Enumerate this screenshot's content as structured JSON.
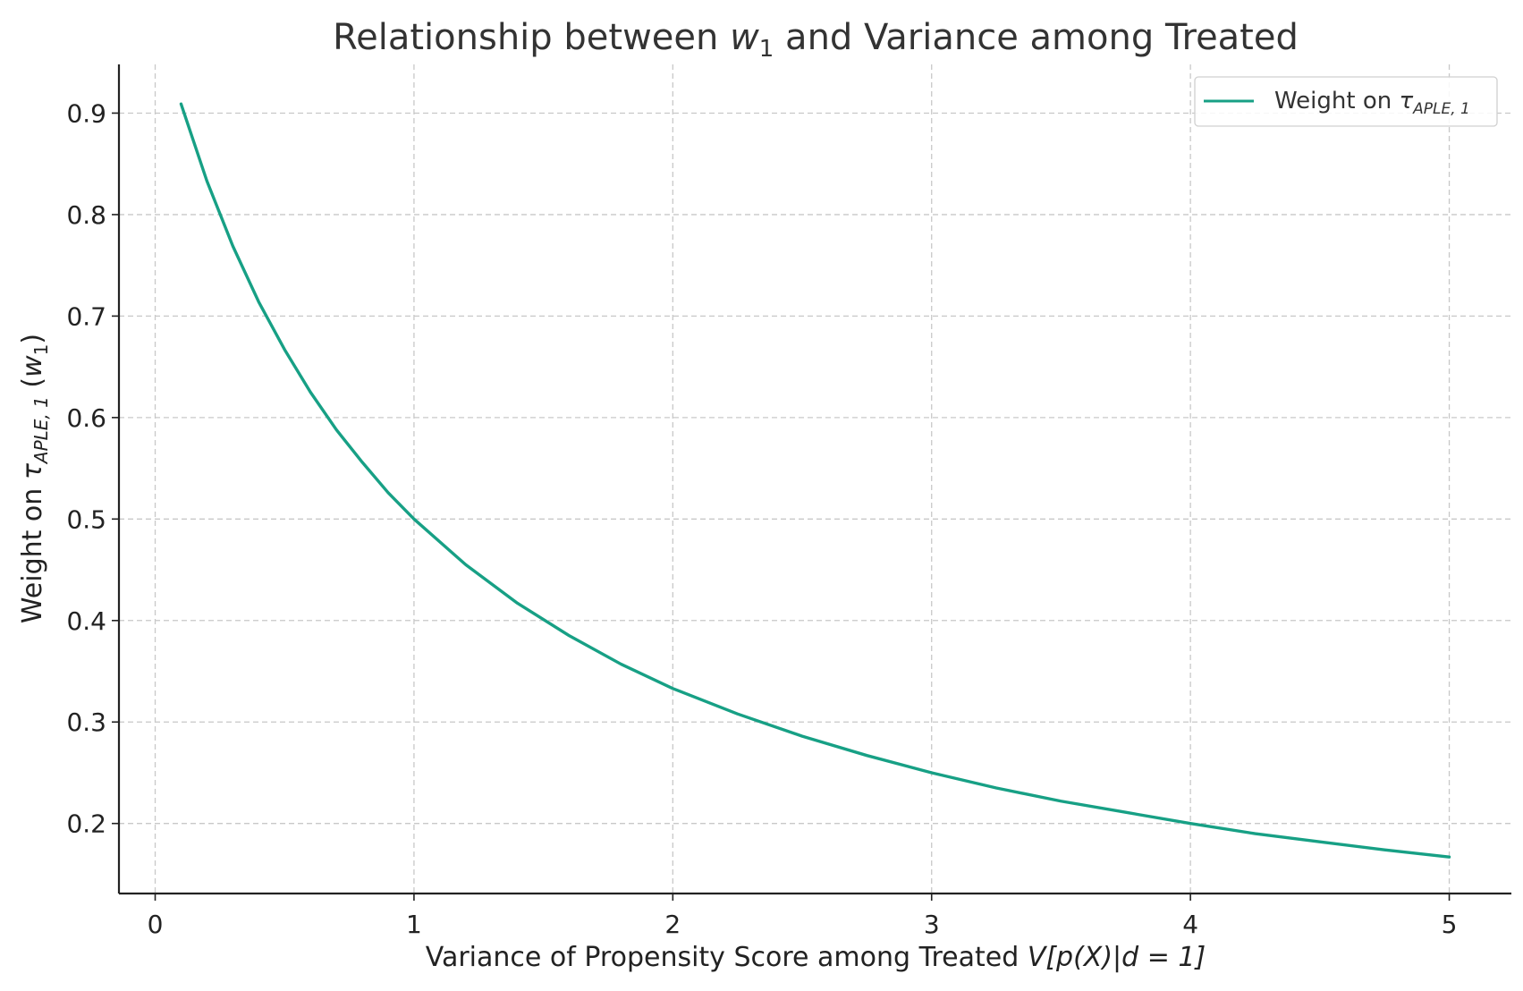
{
  "chart_data": {
    "type": "line",
    "title": {
      "prefix": "Relationship between ",
      "symbol": "w",
      "symbol_sub": "1",
      "suffix": " and Variance among Treated"
    },
    "xlabel": {
      "prefix": "Variance of Propensity Score among Treated ",
      "math": "V[p(X)|d = 1]"
    },
    "ylabel": {
      "prefix": "Weight on ",
      "symbol": "τ",
      "symbol_sub": "APLE, 1",
      "paren_symbol": "w",
      "paren_sub": "1"
    },
    "xlim": [
      -0.14,
      5.24
    ],
    "ylim": [
      0.131,
      0.948
    ],
    "xticks": [
      0,
      1,
      2,
      3,
      4,
      5
    ],
    "xtick_labels": [
      "0",
      "1",
      "2",
      "3",
      "4",
      "5"
    ],
    "yticks": [
      0.2,
      0.3,
      0.4,
      0.5,
      0.6,
      0.7,
      0.8,
      0.9
    ],
    "ytick_labels": [
      "0.2",
      "0.3",
      "0.4",
      "0.5",
      "0.6",
      "0.7",
      "0.8",
      "0.9"
    ],
    "grid": true,
    "legend_position": "top-right",
    "series": [
      {
        "name": {
          "prefix": "Weight on ",
          "symbol": "τ",
          "symbol_sub": "APLE, 1"
        },
        "color": "#17a085",
        "x": [
          0.1,
          0.2,
          0.3,
          0.4,
          0.5,
          0.6,
          0.7,
          0.8,
          0.9,
          1.0,
          1.2,
          1.4,
          1.6,
          1.8,
          2.0,
          2.25,
          2.5,
          2.75,
          3.0,
          3.25,
          3.5,
          3.75,
          4.0,
          4.25,
          4.5,
          4.75,
          5.0
        ],
        "y": [
          0.909,
          0.833,
          0.769,
          0.714,
          0.667,
          0.625,
          0.588,
          0.556,
          0.526,
          0.5,
          0.455,
          0.417,
          0.385,
          0.357,
          0.333,
          0.308,
          0.286,
          0.267,
          0.25,
          0.235,
          0.222,
          0.211,
          0.2,
          0.19,
          0.182,
          0.174,
          0.167
        ]
      }
    ]
  }
}
